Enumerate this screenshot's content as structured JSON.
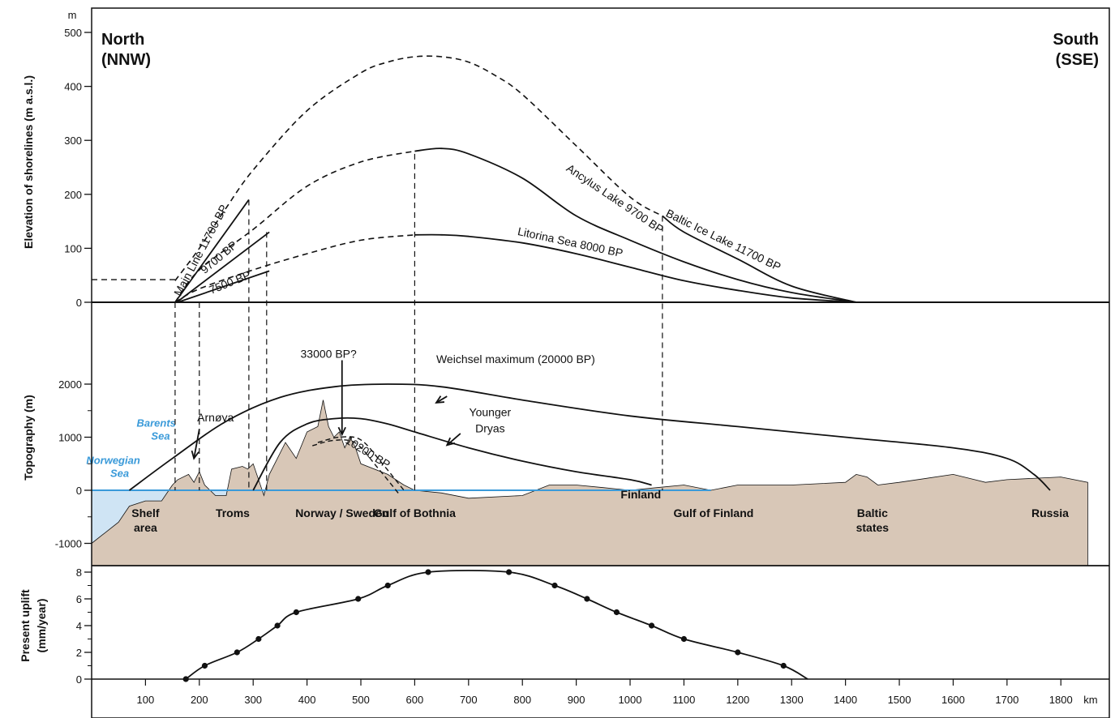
{
  "direction": {
    "north": [
      "North",
      "(NNW)"
    ],
    "south": [
      "South",
      "(SSE)"
    ]
  },
  "chart_data": [
    {
      "type": "line",
      "panel": "shorelines",
      "ylabel": "Elevation of shorelines (m a.s.l.)",
      "yunit": "m",
      "ylim": [
        0,
        500
      ],
      "yticks": [
        0,
        100,
        200,
        300,
        400,
        500
      ],
      "series": [
        {
          "name": "Baltic Ice Lake 11700 BP",
          "x": [
            155,
            200,
            250,
            300,
            400,
            500,
            550,
            600,
            650,
            700,
            750,
            800,
            900,
            1000,
            1060,
            1100,
            1200,
            1300,
            1420
          ],
          "y": [
            40,
            100,
            175,
            245,
            355,
            425,
            445,
            455,
            455,
            445,
            420,
            385,
            290,
            195,
            160,
            130,
            80,
            30,
            0
          ]
        },
        {
          "name": "Ancylus Lake 9700 BP",
          "x": [
            155,
            200,
            300,
            400,
            500,
            600,
            650,
            700,
            800,
            900,
            1000,
            1100,
            1200,
            1300,
            1420
          ],
          "y": [
            0,
            60,
            135,
            215,
            260,
            280,
            285,
            275,
            230,
            160,
            115,
            75,
            42,
            18,
            0
          ]
        },
        {
          "name": "Litorina Sea 8000 BP",
          "x": [
            155,
            200,
            300,
            400,
            500,
            600,
            650,
            700,
            800,
            900,
            1000,
            1100,
            1200,
            1300,
            1420
          ],
          "y": [
            0,
            25,
            60,
            90,
            115,
            125,
            125,
            122,
            110,
            90,
            65,
            40,
            22,
            8,
            0
          ]
        }
      ],
      "annotations": [
        "Main Line 11700 BP",
        "9700 BP",
        "7500 BP",
        "Baltic Ice Lake 11700 BP",
        "Ancylus Lake 9700 BP",
        "Litorina Sea 8000 BP"
      ]
    },
    {
      "type": "area",
      "panel": "topography",
      "ylabel": "Topography (m)",
      "ylim": [
        -1000,
        2000
      ],
      "yticks": [
        -1000,
        0,
        1000,
        2000
      ],
      "series": [
        {
          "name": "Weichsel maximum (20000 BP)",
          "x": [
            70,
            150,
            250,
            350,
            450,
            550,
            650,
            800,
            1000,
            1200,
            1400,
            1600,
            1700,
            1750,
            1780
          ],
          "y": [
            0,
            600,
            1300,
            1750,
            1950,
            2000,
            1950,
            1700,
            1400,
            1200,
            1000,
            800,
            600,
            300,
            0
          ]
        },
        {
          "name": "Younger Dryas",
          "x": [
            300,
            350,
            400,
            450,
            500,
            550,
            600,
            700,
            800,
            900,
            1000,
            1040
          ],
          "y": [
            0,
            900,
            1250,
            1350,
            1350,
            1250,
            1100,
            800,
            550,
            350,
            200,
            100
          ]
        },
        {
          "name": "10200 BP",
          "x": [
            420,
            460,
            500,
            540,
            580
          ],
          "y": [
            900,
            1000,
            950,
            500,
            0
          ]
        },
        {
          "name": "terrain",
          "x": [
            0,
            50,
            70,
            100,
            130,
            150,
            160,
            180,
            190,
            200,
            210,
            230,
            250,
            260,
            280,
            290,
            300,
            320,
            330,
            345,
            360,
            380,
            400,
            420,
            430,
            440,
            450,
            460,
            470,
            480,
            490,
            500,
            550,
            580,
            600,
            650,
            700,
            800,
            850,
            900,
            950,
            1000,
            1050,
            1100,
            1150,
            1200,
            1300,
            1400,
            1420,
            1440,
            1460,
            1500,
            1600,
            1620,
            1640,
            1660,
            1700,
            1800,
            1850
          ],
          "y": [
            -1000,
            -600,
            -300,
            -200,
            -200,
            100,
            200,
            300,
            150,
            350,
            100,
            -100,
            -100,
            400,
            450,
            400,
            500,
            -100,
            300,
            600,
            900,
            600,
            1100,
            1200,
            1700,
            1200,
            1000,
            1100,
            800,
            1000,
            800,
            500,
            300,
            100,
            0,
            -50,
            -150,
            -100,
            100,
            100,
            50,
            0,
            50,
            100,
            0,
            100,
            100,
            150,
            300,
            250,
            100,
            150,
            300,
            250,
            200,
            150,
            200,
            250,
            150
          ]
        }
      ],
      "annotations": [
        "Arnøya",
        "33000 BP?",
        "Finland"
      ],
      "seas": [
        "Barents",
        "Sea",
        "Norwegian",
        "Sea"
      ],
      "regions": [
        "Shelf",
        "area",
        "Troms",
        "Norway / Sweden",
        "Gulf of Bothnia",
        "Gulf of Finland",
        "Baltic",
        "states",
        "Russia"
      ]
    },
    {
      "type": "line",
      "panel": "uplift",
      "ylabel": [
        "Present uplift",
        "(mm/year)"
      ],
      "ylim": [
        0,
        8
      ],
      "yticks": [
        0,
        2,
        4,
        6,
        8
      ],
      "xlabel": "km",
      "xlim": [
        0,
        1890
      ],
      "xticks": [
        100,
        200,
        300,
        400,
        500,
        600,
        700,
        800,
        900,
        1000,
        1100,
        1200,
        1300,
        1400,
        1500,
        1600,
        1700,
        1800
      ],
      "series": [
        {
          "name": "",
          "x": [
            175,
            210,
            270,
            310,
            345,
            380,
            495,
            550,
            625,
            775,
            860,
            920,
            975,
            1040,
            1100,
            1200,
            1285,
            1330
          ],
          "y": [
            0,
            1,
            2,
            3,
            4,
            5,
            6,
            7,
            8,
            8,
            7,
            6,
            5,
            4,
            3,
            2,
            1,
            0
          ]
        }
      ]
    }
  ],
  "colors": {
    "terrain": "#d8c7b7",
    "sea": "#cfe4f4",
    "sea_line": "#3a9ad9",
    "ink": "#111111"
  }
}
